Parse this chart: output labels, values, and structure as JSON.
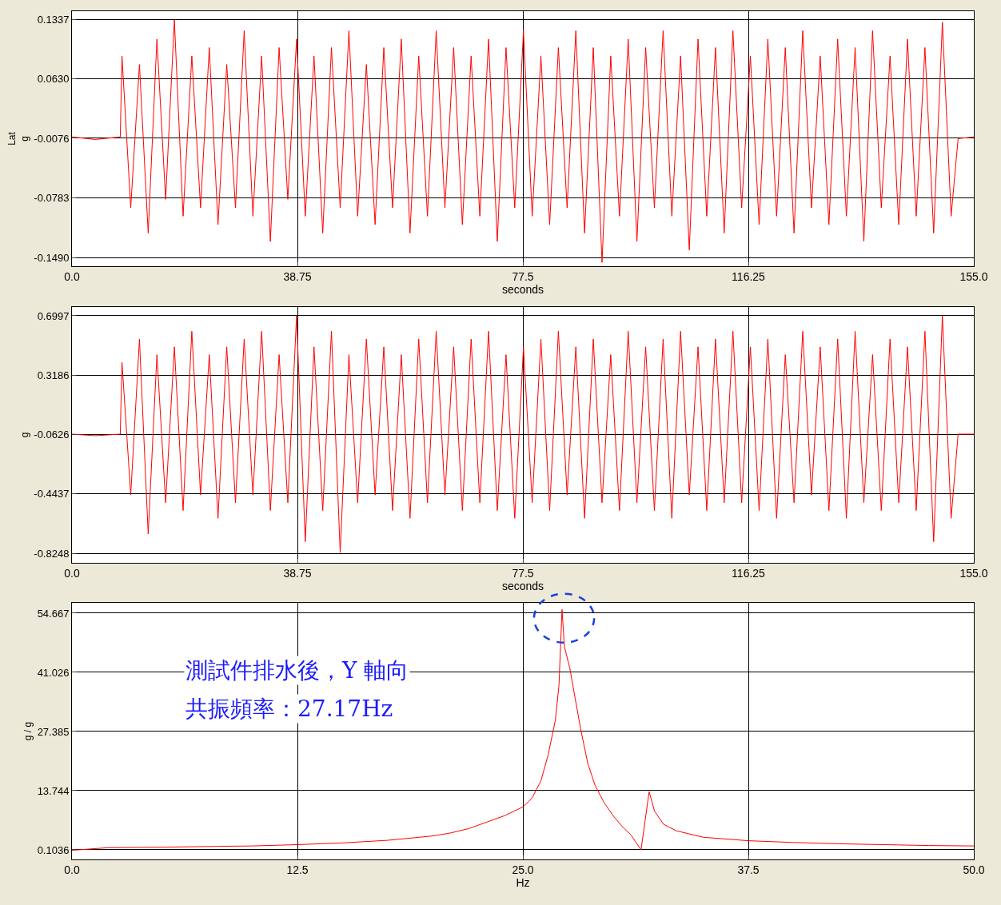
{
  "chart_data": [
    {
      "type": "line",
      "ylabel": "Lat\ng",
      "xlabel": "seconds",
      "x": [
        0,
        4,
        8.3,
        8.6,
        10.1,
        11.6,
        13.1,
        14.6,
        16.1,
        17.6,
        19.1,
        20.6,
        22.1,
        23.6,
        25.1,
        26.6,
        28.1,
        29.6,
        31.1,
        32.6,
        34.1,
        35.6,
        37.1,
        38.6,
        40.1,
        41.6,
        43.1,
        44.6,
        46.1,
        47.6,
        49.1,
        50.6,
        52.1,
        53.6,
        55.1,
        56.6,
        58.1,
        59.6,
        61.1,
        62.6,
        64.1,
        65.6,
        67.1,
        68.6,
        70.1,
        71.6,
        73.1,
        74.6,
        76.1,
        77.6,
        79.1,
        80.6,
        82.1,
        83.6,
        85.1,
        86.6,
        88.1,
        89.6,
        91.1,
        92.6,
        94.1,
        95.6,
        97.1,
        98.6,
        100.1,
        101.6,
        103.1,
        104.6,
        106.1,
        107.6,
        109.1,
        110.6,
        112.1,
        113.6,
        115.1,
        116.6,
        118.1,
        119.6,
        121.1,
        122.6,
        124.1,
        125.6,
        127.1,
        128.6,
        130.1,
        131.6,
        133.1,
        134.6,
        136.1,
        137.6,
        139.1,
        140.6,
        142.1,
        143.6,
        145.1,
        146.6,
        148.1,
        149.6,
        151.1,
        152.3,
        155
      ],
      "series": [
        {
          "color": "#ff0000",
          "values": [
            -0.006,
            -0.009,
            -0.006,
            0.09,
            -0.09,
            0.08,
            -0.12,
            0.11,
            -0.08,
            0.133,
            -0.1,
            0.09,
            -0.09,
            0.1,
            -0.11,
            0.08,
            -0.09,
            0.12,
            -0.1,
            0.09,
            -0.13,
            0.1,
            -0.08,
            0.11,
            -0.1,
            0.09,
            -0.12,
            0.1,
            -0.09,
            0.12,
            -0.1,
            0.08,
            -0.11,
            0.1,
            -0.09,
            0.11,
            -0.12,
            0.09,
            -0.1,
            0.12,
            -0.09,
            0.1,
            -0.11,
            0.09,
            -0.1,
            0.11,
            -0.13,
            0.1,
            -0.09,
            0.12,
            -0.1,
            0.09,
            -0.11,
            0.1,
            -0.09,
            0.12,
            -0.12,
            0.1,
            -0.155,
            0.09,
            -0.1,
            0.11,
            -0.13,
            0.1,
            -0.09,
            0.12,
            -0.1,
            0.09,
            -0.14,
            0.11,
            -0.1,
            0.1,
            -0.12,
            0.12,
            -0.09,
            0.09,
            -0.11,
            0.11,
            -0.1,
            0.1,
            -0.12,
            0.12,
            -0.09,
            0.09,
            -0.11,
            0.11,
            -0.1,
            0.1,
            -0.13,
            0.12,
            -0.09,
            0.09,
            -0.11,
            0.11,
            -0.1,
            0.1,
            -0.12,
            0.13,
            -0.1,
            -0.008,
            -0.006
          ]
        }
      ],
      "xlim": [
        0,
        155
      ],
      "xticks": [
        {
          "value": 0,
          "label": "0.0"
        },
        38.75,
        77.5,
        116.25,
        {
          "value": 155,
          "label": "155.0"
        }
      ],
      "ylim": [
        -0.1594,
        0.1432
      ],
      "yticks": [
        0.1337,
        {
          "value": 0.063,
          "label": "0.0630"
        },
        -0.0076,
        -0.0783,
        {
          "value": -0.149,
          "label": "-0.1490"
        }
      ],
      "grid": true,
      "marker": "none",
      "line_style": "solid"
    },
    {
      "type": "line",
      "ylabel": "g",
      "xlabel": "seconds",
      "x": [
        0,
        4,
        8.3,
        8.6,
        10.1,
        11.6,
        13.1,
        14.6,
        16.1,
        17.6,
        19.1,
        20.6,
        22.1,
        23.6,
        25.1,
        26.6,
        28.1,
        29.6,
        31.1,
        32.6,
        34.1,
        35.6,
        37.1,
        38.6,
        40.1,
        41.6,
        43.1,
        44.6,
        46.1,
        47.6,
        49.1,
        50.6,
        52.1,
        53.6,
        55.1,
        56.6,
        58.1,
        59.6,
        61.1,
        62.6,
        64.1,
        65.6,
        67.1,
        68.6,
        70.1,
        71.6,
        73.1,
        74.6,
        76.1,
        77.6,
        79.1,
        80.6,
        82.1,
        83.6,
        85.1,
        86.6,
        88.1,
        89.6,
        91.1,
        92.6,
        94.1,
        95.6,
        97.1,
        98.6,
        100.1,
        101.6,
        103.1,
        104.6,
        106.1,
        107.6,
        109.1,
        110.6,
        112.1,
        113.6,
        115.1,
        116.6,
        118.1,
        119.6,
        121.1,
        122.6,
        124.1,
        125.6,
        127.1,
        128.6,
        130.1,
        131.6,
        133.1,
        134.6,
        136.1,
        137.6,
        139.1,
        140.6,
        142.1,
        143.6,
        145.1,
        146.6,
        148.1,
        149.6,
        151.1,
        152.3,
        155
      ],
      "series": [
        {
          "color": "#ff0000",
          "values": [
            -0.06,
            -0.07,
            -0.06,
            0.4,
            -0.45,
            0.55,
            -0.7,
            0.45,
            -0.5,
            0.5,
            -0.55,
            0.6,
            -0.45,
            0.45,
            -0.6,
            0.5,
            -0.5,
            0.55,
            -0.45,
            0.6,
            -0.55,
            0.45,
            -0.5,
            0.7,
            -0.75,
            0.5,
            -0.55,
            0.6,
            -0.82,
            0.45,
            -0.5,
            0.55,
            -0.45,
            0.5,
            -0.55,
            0.45,
            -0.6,
            0.55,
            -0.5,
            0.6,
            -0.45,
            0.5,
            -0.55,
            0.55,
            -0.5,
            0.6,
            -0.55,
            0.45,
            -0.6,
            0.5,
            -0.5,
            0.55,
            -0.55,
            0.6,
            -0.45,
            0.5,
            -0.6,
            0.55,
            -0.5,
            0.45,
            -0.55,
            0.6,
            -0.5,
            0.5,
            -0.55,
            0.55,
            -0.6,
            0.6,
            -0.45,
            0.5,
            -0.55,
            0.55,
            -0.5,
            0.6,
            -0.5,
            0.5,
            -0.55,
            0.55,
            -0.6,
            0.45,
            -0.5,
            0.6,
            -0.45,
            0.5,
            -0.55,
            0.55,
            -0.6,
            0.6,
            -0.5,
            0.45,
            -0.55,
            0.55,
            -0.5,
            0.5,
            -0.55,
            0.6,
            -0.75,
            0.7,
            -0.6,
            -0.06,
            -0.06
          ]
        }
      ],
      "xlim": [
        0,
        155
      ],
      "xticks": [
        {
          "value": 0,
          "label": "0.0"
        },
        38.75,
        77.5,
        116.25,
        {
          "value": 155,
          "label": "155.0"
        }
      ],
      "ylim": [
        -0.886,
        0.756
      ],
      "yticks": [
        0.6997,
        0.3186,
        -0.0626,
        -0.4437,
        -0.8248
      ],
      "grid": true,
      "marker": "none",
      "line_style": "solid"
    },
    {
      "type": "line",
      "ylabel": "g / g",
      "xlabel": "Hz",
      "x": [
        0,
        2,
        5,
        8,
        10,
        12.5,
        15,
        17.5,
        20,
        21,
        22,
        23,
        24,
        25,
        25.5,
        26,
        26.4,
        26.8,
        27.0,
        27.17,
        27.3,
        27.6,
        27.9,
        28.2,
        28.6,
        29.0,
        29.5,
        30.0,
        30.5,
        31.0,
        31.55,
        32.0,
        32.3,
        32.8,
        33.5,
        35,
        37.5,
        40,
        42.5,
        45,
        47.5,
        50
      ],
      "series": [
        {
          "color": "#ff0000",
          "values": [
            0.0,
            0.6,
            0.7,
            0.9,
            1.0,
            1.3,
            1.7,
            2.3,
            3.3,
            4.0,
            5.0,
            6.5,
            8.0,
            10.0,
            12.0,
            16.0,
            22.0,
            30.0,
            38.0,
            55.5,
            47.0,
            42.0,
            35.0,
            28.0,
            20.0,
            15.0,
            11.0,
            8.0,
            5.5,
            3.5,
            0.1,
            13.5,
            9.0,
            6.0,
            4.5,
            3.0,
            2.2,
            1.8,
            1.5,
            1.3,
            1.1,
            1.0
          ]
        }
      ],
      "xlim": [
        0,
        50
      ],
      "xticks": [
        {
          "value": 0,
          "label": "0.0"
        },
        12.5,
        {
          "value": 25,
          "label": "25.0"
        },
        37.5,
        {
          "value": 50,
          "label": "50.0"
        }
      ],
      "ylim": [
        -2.11,
        57.06
      ],
      "yticks": [
        54.667,
        41.026,
        27.385,
        13.744,
        0.1036
      ],
      "annotations": [
        "測試件排水後，Y 軸向",
        "共振頻率：27.17Hz"
      ],
      "grid": true,
      "marker": "none",
      "line_style": "solid"
    }
  ]
}
